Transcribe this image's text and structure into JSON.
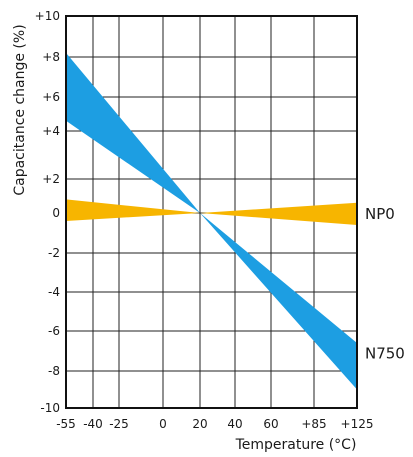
{
  "chart_data": {
    "type": "area",
    "title": "",
    "xlabel": "Temperature (°C)",
    "ylabel": "Capacitance change (%)",
    "xlim": [
      -55,
      125
    ],
    "ylim": [
      -10,
      10
    ],
    "grid": true,
    "x_ticks": [
      {
        "value": -55,
        "label": "-55"
      },
      {
        "value": -40,
        "label": "-40"
      },
      {
        "value": -25,
        "label": "-25"
      },
      {
        "value": 0,
        "label": "0"
      },
      {
        "value": 20,
        "label": "20"
      },
      {
        "value": 40,
        "label": "40"
      },
      {
        "value": 60,
        "label": "60"
      },
      {
        "value": 85,
        "label": "+85"
      },
      {
        "value": 125,
        "label": "+125"
      }
    ],
    "y_ticks": [
      {
        "value": 10,
        "label": "+10"
      },
      {
        "value": 8,
        "label": "+8"
      },
      {
        "value": 6,
        "label": "+6"
      },
      {
        "value": 4,
        "label": "+4"
      },
      {
        "value": 2,
        "label": "+2"
      },
      {
        "value": 0,
        "label": "0"
      },
      {
        "value": -2,
        "label": "-2"
      },
      {
        "value": -4,
        "label": "-4"
      },
      {
        "value": -6,
        "label": "-6"
      },
      {
        "value": -8,
        "label": "-8"
      },
      {
        "value": -10,
        "label": "-10"
      }
    ],
    "series": [
      {
        "name": "N750",
        "color": "#1d9ee2",
        "x": [
          -55,
          20,
          125
        ],
        "upper": [
          8.2,
          0,
          -6.6
        ],
        "lower": [
          4.6,
          0,
          -9.0
        ]
      },
      {
        "name": "NP0",
        "color": "#f7b500",
        "x": [
          -55,
          20,
          125
        ],
        "upper": [
          0.8,
          0,
          0.6
        ],
        "lower": [
          -0.4,
          0,
          -0.6
        ]
      }
    ]
  }
}
